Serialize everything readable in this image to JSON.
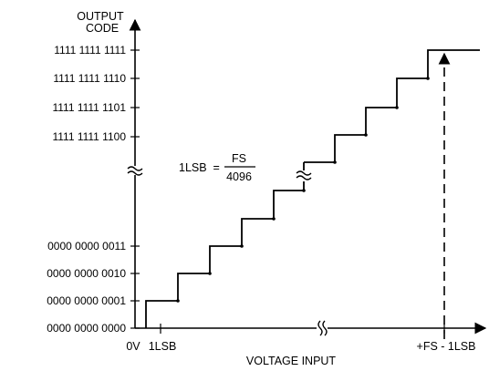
{
  "y_axis": {
    "label_line1": "OUTPUT",
    "label_line2": "CODE",
    "codes": [
      "0000 0000 0000",
      "0000 0000 0001",
      "0000 0000 0010",
      "0000 0000 0011",
      "1111 1111 1100",
      "1111 1111 1101",
      "1111 1111 1110",
      "1111 1111 1111"
    ]
  },
  "x_axis": {
    "label": "VOLTAGE INPUT",
    "tick_zero": "0V",
    "tick_1lsb": "1LSB",
    "tick_fs": "+FS - 1LSB"
  },
  "formula": {
    "lhs": "1LSB  =",
    "numerator": "FS",
    "denominator": "4096"
  },
  "break_symbol": "≈"
}
